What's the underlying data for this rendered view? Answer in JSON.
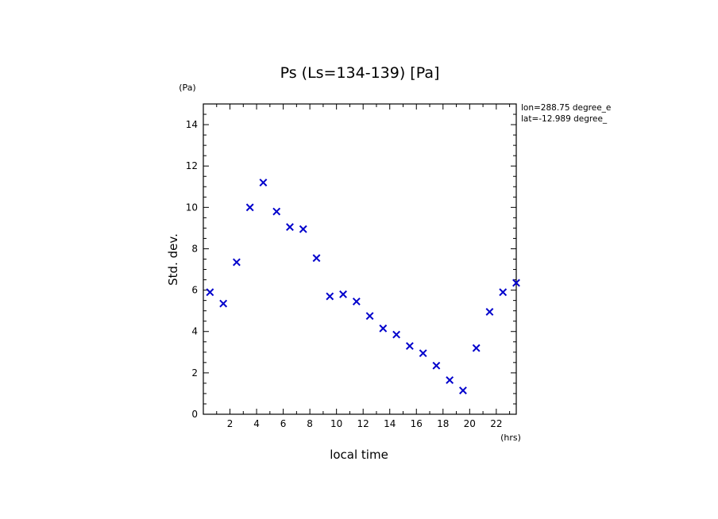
{
  "chart_data": {
    "type": "scatter",
    "title": "Ps (Ls=134-139) [Pa]",
    "xlabel": "local time",
    "ylabel": "Std. dev.",
    "x_unit": "(hrs)",
    "y_unit": "(Pa)",
    "xlim": [
      0,
      23.5
    ],
    "ylim": [
      0,
      15
    ],
    "x_ticks": [
      2,
      4,
      6,
      8,
      10,
      12,
      14,
      16,
      18,
      20,
      22
    ],
    "y_ticks": [
      0,
      2,
      4,
      6,
      8,
      10,
      12,
      14
    ],
    "annotations": [
      "lon=288.75 degree_e",
      "lat=-12.989 degree_"
    ],
    "marker": "x",
    "marker_color": "#0000cc",
    "grid": false,
    "series": [
      {
        "x": [
          0.5,
          1.5,
          2.5,
          3.5,
          4.5,
          5.5,
          6.5,
          7.5,
          8.5,
          9.5,
          10.5,
          11.5,
          12.5,
          13.5,
          14.5,
          15.5,
          16.5,
          17.5,
          18.5,
          19.5,
          20.5,
          21.5,
          22.5,
          23.5
        ],
        "y": [
          5.9,
          5.35,
          7.35,
          10.0,
          11.2,
          9.8,
          9.05,
          8.95,
          7.55,
          5.7,
          5.8,
          5.45,
          4.75,
          4.15,
          3.85,
          3.3,
          2.95,
          2.35,
          1.65,
          1.15,
          3.2,
          4.95,
          5.9,
          6.35
        ]
      }
    ]
  }
}
